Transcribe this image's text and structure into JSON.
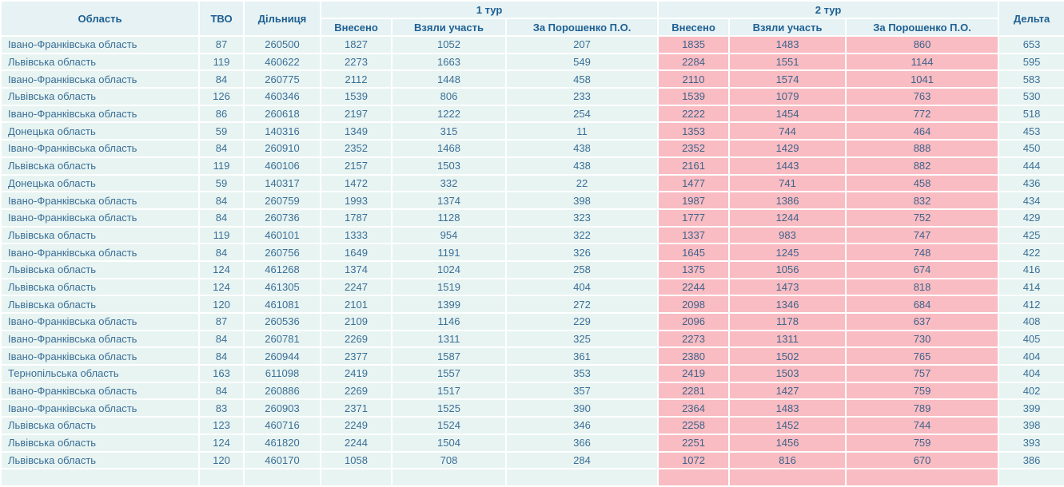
{
  "colors": {
    "row_bg": "#e8f4f2",
    "header_bg": "#e6f2f3",
    "round2_bg": "#f8bcc2",
    "header_text": "#1f6093",
    "data_text": "#3a6f96",
    "border": "#ffffff"
  },
  "table": {
    "headers": {
      "region": "Область",
      "tvo": "ТВО",
      "station": "Дільниця",
      "round1": "1 тур",
      "round2": "2 тур",
      "delta": "Дельта",
      "vneseno": "Внесено",
      "uchast": "Взяли участь",
      "poroshenko": "За Порошенко П.О."
    },
    "rows": [
      [
        "Івано-Франківська область",
        "87",
        "260500",
        "1827",
        "1052",
        "207",
        "1835",
        "1483",
        "860",
        "653"
      ],
      [
        "Львівська область",
        "119",
        "460622",
        "2273",
        "1663",
        "549",
        "2284",
        "1551",
        "1144",
        "595"
      ],
      [
        "Івано-Франківська область",
        "84",
        "260775",
        "2112",
        "1448",
        "458",
        "2110",
        "1574",
        "1041",
        "583"
      ],
      [
        "Львівська область",
        "126",
        "460346",
        "1539",
        "806",
        "233",
        "1539",
        "1079",
        "763",
        "530"
      ],
      [
        "Івано-Франківська область",
        "86",
        "260618",
        "2197",
        "1222",
        "254",
        "2222",
        "1454",
        "772",
        "518"
      ],
      [
        "Донецька область",
        "59",
        "140316",
        "1349",
        "315",
        "11",
        "1353",
        "744",
        "464",
        "453"
      ],
      [
        "Івано-Франківська область",
        "84",
        "260910",
        "2352",
        "1468",
        "438",
        "2352",
        "1429",
        "888",
        "450"
      ],
      [
        "Львівська область",
        "119",
        "460106",
        "2157",
        "1503",
        "438",
        "2161",
        "1443",
        "882",
        "444"
      ],
      [
        "Донецька область",
        "59",
        "140317",
        "1472",
        "332",
        "22",
        "1477",
        "741",
        "458",
        "436"
      ],
      [
        "Івано-Франківська область",
        "84",
        "260759",
        "1993",
        "1374",
        "398",
        "1987",
        "1386",
        "832",
        "434"
      ],
      [
        "Івано-Франківська область",
        "84",
        "260736",
        "1787",
        "1128",
        "323",
        "1777",
        "1244",
        "752",
        "429"
      ],
      [
        "Львівська область",
        "119",
        "460101",
        "1333",
        "954",
        "322",
        "1337",
        "983",
        "747",
        "425"
      ],
      [
        "Івано-Франківська область",
        "84",
        "260756",
        "1649",
        "1191",
        "326",
        "1645",
        "1245",
        "748",
        "422"
      ],
      [
        "Львівська область",
        "124",
        "461268",
        "1374",
        "1024",
        "258",
        "1375",
        "1056",
        "674",
        "416"
      ],
      [
        "Львівська область",
        "124",
        "461305",
        "2247",
        "1519",
        "404",
        "2244",
        "1473",
        "818",
        "414"
      ],
      [
        "Львівська область",
        "120",
        "461081",
        "2101",
        "1399",
        "272",
        "2098",
        "1346",
        "684",
        "412"
      ],
      [
        "Івано-Франківська область",
        "87",
        "260536",
        "2109",
        "1146",
        "229",
        "2096",
        "1178",
        "637",
        "408"
      ],
      [
        "Івано-Франківська область",
        "84",
        "260781",
        "2269",
        "1311",
        "325",
        "2273",
        "1311",
        "730",
        "405"
      ],
      [
        "Івано-Франківська область",
        "84",
        "260944",
        "2377",
        "1587",
        "361",
        "2380",
        "1502",
        "765",
        "404"
      ],
      [
        "Тернопільська область",
        "163",
        "611098",
        "2419",
        "1557",
        "353",
        "2419",
        "1503",
        "757",
        "404"
      ],
      [
        "Івано-Франківська область",
        "84",
        "260886",
        "2269",
        "1517",
        "357",
        "2281",
        "1427",
        "759",
        "402"
      ],
      [
        "Івано-Франківська область",
        "83",
        "260903",
        "2371",
        "1525",
        "390",
        "2364",
        "1483",
        "789",
        "399"
      ],
      [
        "Львівська область",
        "123",
        "460716",
        "2249",
        "1524",
        "346",
        "2258",
        "1452",
        "744",
        "398"
      ],
      [
        "Львівська область",
        "124",
        "461820",
        "2244",
        "1504",
        "366",
        "2251",
        "1456",
        "759",
        "393"
      ],
      [
        "Львівська область",
        "120",
        "460170",
        "1058",
        "708",
        "284",
        "1072",
        "816",
        "670",
        "386"
      ]
    ]
  }
}
